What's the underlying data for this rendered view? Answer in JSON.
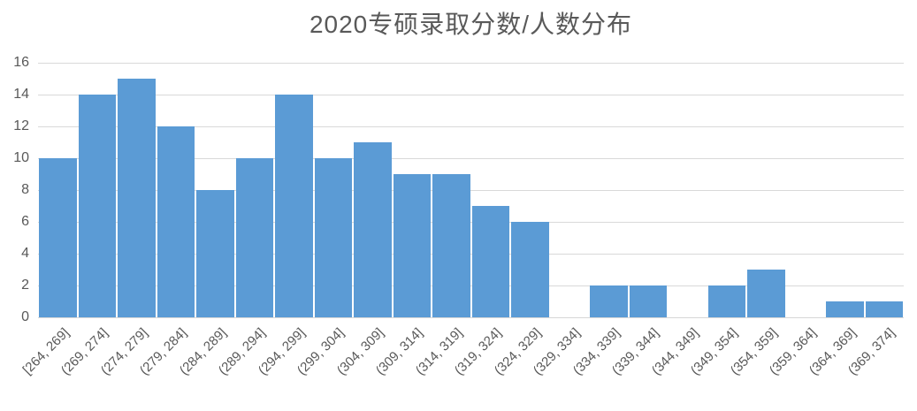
{
  "chart_data": {
    "type": "bar",
    "title": "2020专硕录取分数/人数分布",
    "categories": [
      "[264, 269]",
      "(269, 274]",
      "(274, 279]",
      "(279, 284]",
      "(284, 289]",
      "(289, 294]",
      "(294, 299]",
      "(299, 304]",
      "(304, 309]",
      "(309, 314]",
      "(314, 319]",
      "(319, 324]",
      "(324, 329]",
      "(329, 334]",
      "(334, 339]",
      "(339, 344]",
      "(344, 349]",
      "(349, 354]",
      "(354, 359]",
      "(359, 364]",
      "(364, 369]",
      "(369, 374]"
    ],
    "values": [
      10,
      14,
      15,
      12,
      8,
      10,
      14,
      10,
      11,
      9,
      9,
      7,
      6,
      0,
      2,
      2,
      0,
      2,
      3,
      0,
      1,
      1
    ],
    "xlabel": "",
    "ylabel": "",
    "ylim": [
      0,
      16
    ],
    "yticks": [
      0,
      2,
      4,
      6,
      8,
      10,
      12,
      14,
      16
    ],
    "grid": true,
    "legend": false,
    "bar_color": "#5b9bd5",
    "title_color": "#595959",
    "axis_text_color": "#595959",
    "gridline_color": "#d9d9d9"
  }
}
